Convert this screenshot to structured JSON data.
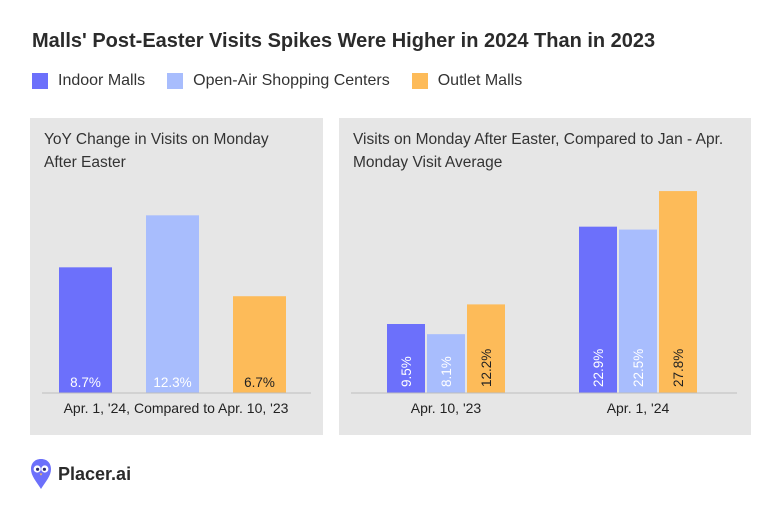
{
  "title": "Malls' Post-Easter Visits Spikes Were Higher in 2024 Than in 2023",
  "legend": [
    {
      "label": "Indoor Malls",
      "color": "#6c70fb"
    },
    {
      "label": "Open-Air Shopping Centers",
      "color": "#a8bdfd"
    },
    {
      "label": "Outlet Malls",
      "color": "#fdbb59"
    }
  ],
  "brand": {
    "name": "Placer.ai",
    "icon": "owl-logo-icon"
  },
  "chart_data": [
    {
      "type": "bar",
      "title": "YoY Change in Visits on Monday After Easter",
      "categories": [
        "Apr. 1, '24, Compared to Apr. 10, '23"
      ],
      "series": [
        {
          "name": "Indoor Malls",
          "values": [
            8.7
          ],
          "labels": [
            "8.7%"
          ]
        },
        {
          "name": "Open-Air Shopping Centers",
          "values": [
            12.3
          ],
          "labels": [
            "12.3%"
          ]
        },
        {
          "name": "Outlet Malls",
          "values": [
            6.7
          ],
          "labels": [
            "6.7%"
          ]
        }
      ],
      "ylim": [
        0,
        13.5
      ],
      "label_orientation": "horizontal"
    },
    {
      "type": "bar",
      "title": "Visits on Monday After Easter, Compared to Jan - Apr. Monday Visit Average",
      "categories": [
        "Apr. 10, '23",
        "Apr. 1, '24"
      ],
      "series": [
        {
          "name": "Indoor Malls",
          "values": [
            9.5,
            22.9
          ],
          "labels": [
            "9.5%",
            "22.9%"
          ]
        },
        {
          "name": "Open-Air Shopping Centers",
          "values": [
            8.1,
            22.5
          ],
          "labels": [
            "8.1%",
            "22.5%"
          ]
        },
        {
          "name": "Outlet Malls",
          "values": [
            12.2,
            27.8
          ],
          "labels": [
            "12.2%",
            "27.8%"
          ]
        }
      ],
      "ylim": [
        0,
        28.5
      ],
      "label_orientation": "vertical"
    }
  ]
}
